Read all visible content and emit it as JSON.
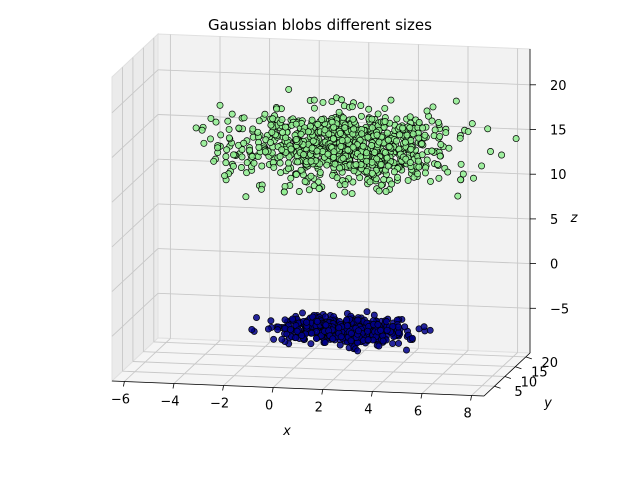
{
  "chart_data": {
    "type": "scatter",
    "title": "Gaussian blobs different sizes",
    "xlabel": "x",
    "ylabel": "y",
    "zlabel": "z",
    "xlim": [
      -6.5,
      8.5
    ],
    "ylim": [
      0,
      22
    ],
    "zlim": [
      -10,
      24
    ],
    "x_ticks": [
      "−6",
      "−4",
      "−2",
      "0",
      "2",
      "4",
      "6",
      "8"
    ],
    "y_ticks": [
      "5",
      "10",
      "15",
      "20"
    ],
    "z_ticks": [
      "−5",
      "0",
      "5",
      "10",
      "15",
      "20"
    ],
    "grid": true,
    "series": [
      {
        "color": "#90ee90",
        "edge_color": "#000000",
        "count": 1000,
        "center": [
          2.0,
          10.0,
          15.0
        ],
        "spread": [
          2.2,
          3.0,
          1.8
        ],
        "x_range": [
          -6.0,
          8.8
        ],
        "z_range": [
          10.0,
          20.0
        ]
      },
      {
        "color": "#00008b",
        "edge_color": "#000000",
        "count": 500,
        "center": [
          2.0,
          10.0,
          -5.5
        ],
        "spread": [
          1.3,
          1.5,
          0.7
        ],
        "x_range": [
          -2.0,
          5.5
        ],
        "z_range": [
          -8.0,
          -4.0
        ]
      }
    ]
  }
}
